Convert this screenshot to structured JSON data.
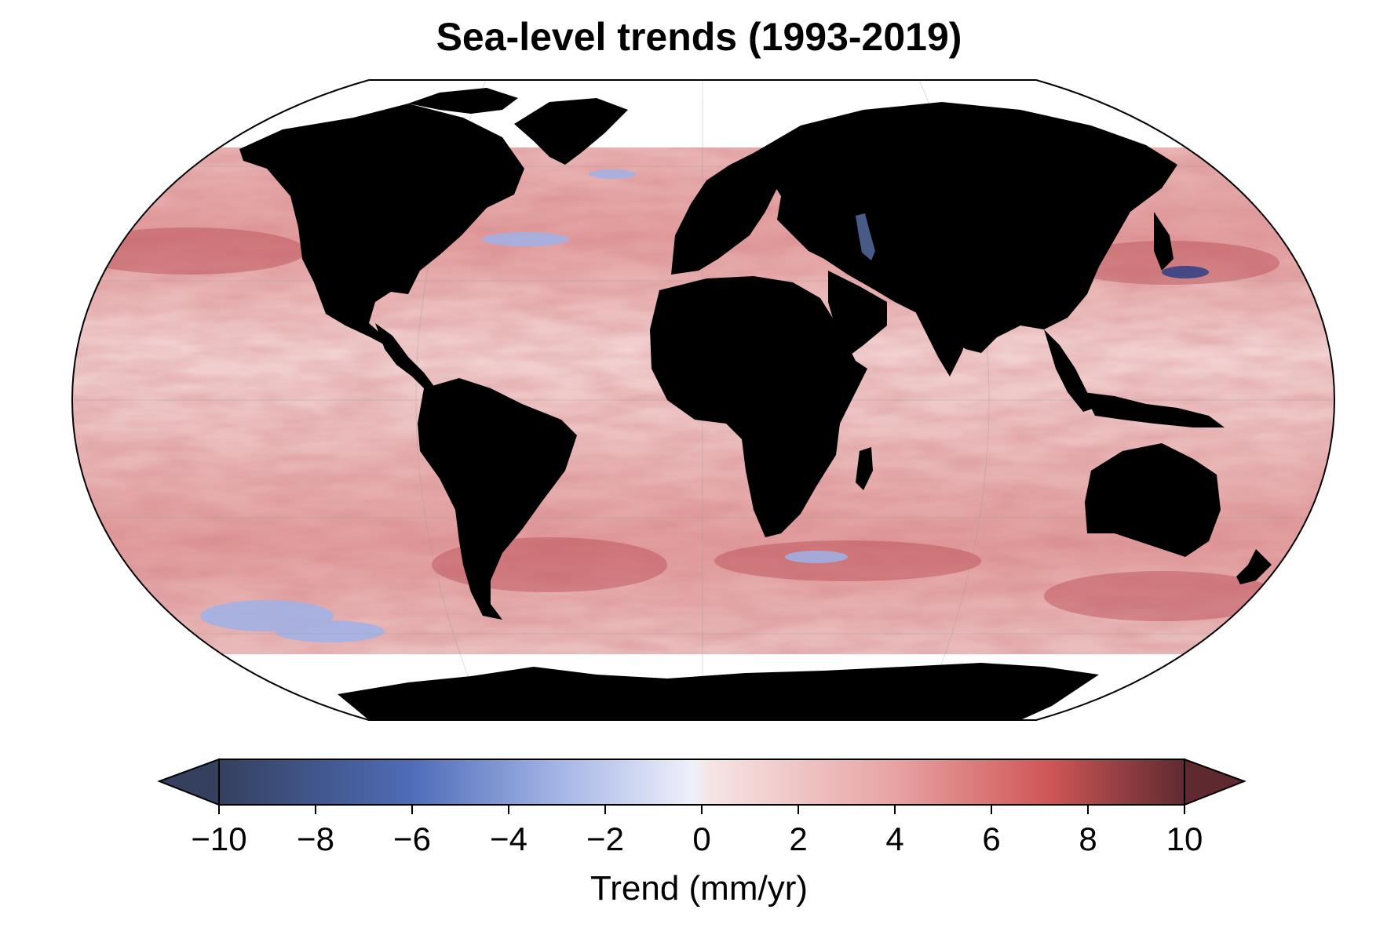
{
  "title": "Sea-level trends (1993-2019)",
  "colorbar": {
    "label": "Trend (mm/yr)",
    "min": -10,
    "max": 10,
    "ticks": [
      {
        "value": -10,
        "label": "−10"
      },
      {
        "value": -8,
        "label": "−8"
      },
      {
        "value": -6,
        "label": "−6"
      },
      {
        "value": -4,
        "label": "−4"
      },
      {
        "value": -2,
        "label": "−2"
      },
      {
        "value": 0,
        "label": "0"
      },
      {
        "value": 2,
        "label": "2"
      },
      {
        "value": 4,
        "label": "4"
      },
      {
        "value": 6,
        "label": "6"
      },
      {
        "value": 8,
        "label": "8"
      },
      {
        "value": 10,
        "label": "10"
      }
    ],
    "extend": "both",
    "colormap": [
      "#34405e",
      "#4e6cb8",
      "#a3b4e6",
      "#eef0fa",
      "#f6e4e4",
      "#e8a3a3",
      "#cf5656",
      "#5e2a30"
    ]
  },
  "map": {
    "projection": "Robinson",
    "land_color": "#000000",
    "ocean_base_color": "#eab8b8",
    "nodata_color": "#ffffff"
  }
}
